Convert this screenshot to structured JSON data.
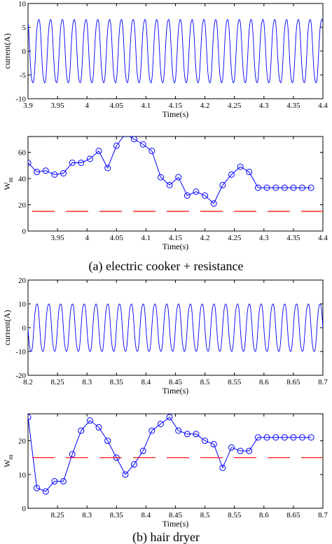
{
  "chart_data": [
    {
      "type": "line",
      "xlabel": "Time(s)",
      "ylabel": "current(A)",
      "xlim": [
        3.9,
        4.4
      ],
      "ylim": [
        -10,
        10
      ],
      "xticks": [
        "3.9",
        "3.95",
        "4",
        "4.05",
        "4.1",
        "4.15",
        "4.2",
        "4.25",
        "4.3",
        "4.35",
        "4.4"
      ],
      "yticks": [
        "-10",
        "-5",
        "0",
        "5",
        "10"
      ],
      "waveform": {
        "frequency_hz": 50,
        "amplitude_a": 7,
        "phase": 0.35
      },
      "series": [
        {
          "color": "#0000ff"
        }
      ]
    },
    {
      "type": "line",
      "xlabel": "Time(s)",
      "ylabel": "W",
      "ylabel_sub": "m",
      "xlim": [
        3.9,
        4.4
      ],
      "ylim": [
        0,
        72
      ],
      "xticks": [
        "3.95",
        "4",
        "4.05",
        "4.1",
        "4.15",
        "4.2",
        "4.25",
        "4.3",
        "4.35",
        "4.4"
      ],
      "yticks": [
        "0",
        "20",
        "40",
        "60"
      ],
      "series": [
        {
          "color": "#0000ff",
          "marker": "circle",
          "x": [
            3.9,
            3.915,
            3.93,
            3.945,
            3.96,
            3.975,
            3.99,
            4.005,
            4.02,
            4.035,
            4.05,
            4.065,
            4.08,
            4.095,
            4.11,
            4.125,
            4.14,
            4.155,
            4.17,
            4.185,
            4.2,
            4.215,
            4.23,
            4.245,
            4.26,
            4.275,
            4.29,
            4.305,
            4.32,
            4.335,
            4.35,
            4.365,
            4.38
          ],
          "y": [
            52,
            45,
            46,
            43,
            44,
            52,
            52,
            55,
            61,
            48,
            65,
            74,
            70,
            66,
            61,
            41,
            35,
            41,
            27,
            30,
            27,
            21,
            35,
            43,
            49,
            45,
            33,
            33,
            33,
            33,
            33,
            33,
            33
          ]
        },
        {
          "color": "#ff0000",
          "dash": true,
          "y_const": 15
        }
      ]
    },
    {
      "type": "line",
      "xlabel": "Time(s)",
      "ylabel": "current(A)",
      "xlim": [
        8.2,
        8.7
      ],
      "ylim": [
        -20,
        20
      ],
      "xticks": [
        "8.2",
        "8.25",
        "8.3",
        "8.35",
        "8.4",
        "8.45",
        "8.5",
        "8.55",
        "8.6",
        "8.65",
        "8.7"
      ],
      "yticks": [
        "-20",
        "-10",
        "0",
        "10",
        "20"
      ],
      "waveform": {
        "frequency_hz": 50,
        "amplitude_a": 10.5,
        "phase": 0.5
      },
      "series": [
        {
          "color": "#0000ff"
        }
      ]
    },
    {
      "type": "line",
      "xlabel": "Time(s)",
      "ylabel": "W",
      "ylabel_sub": "m",
      "xlim": [
        8.2,
        8.7
      ],
      "ylim": [
        0,
        28
      ],
      "xticks": [
        "8.25",
        "8.3",
        "8.35",
        "8.4",
        "8.45",
        "8.5",
        "8.55",
        "8.6",
        "8.65",
        "8.7"
      ],
      "yticks": [
        "0",
        "10",
        "20"
      ],
      "series": [
        {
          "color": "#0000ff",
          "marker": "circle",
          "x": [
            8.2,
            8.215,
            8.23,
            8.245,
            8.26,
            8.275,
            8.29,
            8.305,
            8.32,
            8.335,
            8.35,
            8.365,
            8.38,
            8.395,
            8.41,
            8.425,
            8.44,
            8.455,
            8.47,
            8.485,
            8.5,
            8.515,
            8.53,
            8.545,
            8.56,
            8.575,
            8.59,
            8.605,
            8.62,
            8.635,
            8.65,
            8.665,
            8.68
          ],
          "y": [
            27,
            6,
            5,
            8,
            8,
            16,
            23,
            26,
            24,
            20,
            15,
            10,
            13,
            17,
            23,
            25,
            27,
            23,
            22,
            22,
            20,
            19,
            12,
            18,
            17,
            17,
            21,
            21,
            21,
            21,
            21,
            21,
            21
          ]
        },
        {
          "color": "#ff0000",
          "dash": true,
          "y_const": 15
        }
      ]
    }
  ],
  "captions": {
    "a": "(a)  electric cooker + resistance",
    "b": "(b)  hair dryer"
  }
}
